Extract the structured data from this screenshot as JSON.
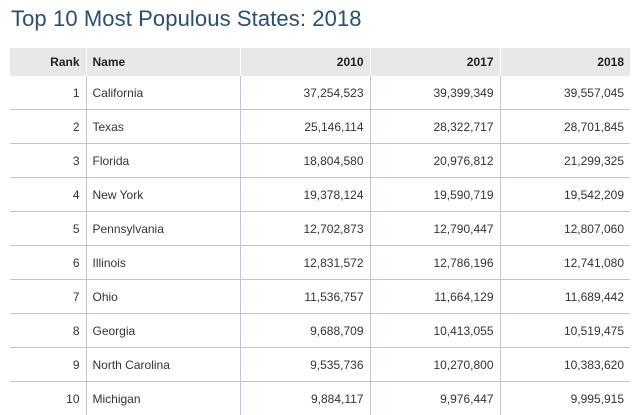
{
  "title": "Top 10 Most Populous States: 2018",
  "columns": {
    "rank": "Rank",
    "name": "Name",
    "y2010": "2010",
    "y2017": "2017",
    "y2018": "2018"
  },
  "rows": [
    {
      "rank": "1",
      "name": "California",
      "y2010": "37,254,523",
      "y2017": "39,399,349",
      "y2018": "39,557,045"
    },
    {
      "rank": "2",
      "name": "Texas",
      "y2010": "25,146,114",
      "y2017": "28,322,717",
      "y2018": "28,701,845"
    },
    {
      "rank": "3",
      "name": "Florida",
      "y2010": "18,804,580",
      "y2017": "20,976,812",
      "y2018": "21,299,325"
    },
    {
      "rank": "4",
      "name": "New York",
      "y2010": "19,378,124",
      "y2017": "19,590,719",
      "y2018": "19,542,209"
    },
    {
      "rank": "5",
      "name": "Pennsylvania",
      "y2010": "12,702,873",
      "y2017": "12,790,447",
      "y2018": "12,807,060"
    },
    {
      "rank": "6",
      "name": "Illinois",
      "y2010": "12,831,572",
      "y2017": "12,786,196",
      "y2018": "12,741,080"
    },
    {
      "rank": "7",
      "name": "Ohio",
      "y2010": "11,536,757",
      "y2017": "11,664,129",
      "y2018": "11,689,442"
    },
    {
      "rank": "8",
      "name": "Georgia",
      "y2010": "9,688,709",
      "y2017": "10,413,055",
      "y2018": "10,519,475"
    },
    {
      "rank": "9",
      "name": "North Carolina",
      "y2010": "9,535,736",
      "y2017": "10,270,800",
      "y2018": "10,383,620"
    },
    {
      "rank": "10",
      "name": "Michigan",
      "y2010": "9,884,117",
      "y2017": "9,976,447",
      "y2018": "9,995,915"
    }
  ],
  "colors": {
    "title": "#2b4e6f",
    "header_bg": "#e8e8e8",
    "grid": "#bfc6cc"
  }
}
